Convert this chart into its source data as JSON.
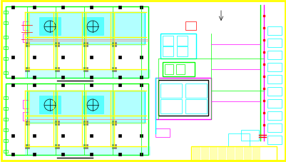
{
  "bg_color": "#FFFFFF",
  "border_color": "#FFFF00",
  "green": "#00FF00",
  "cyan": "#00FFFF",
  "yellow": "#FFFF00",
  "magenta": "#FF00FF",
  "red": "#FF0000",
  "black": "#000000",
  "blue": "#0000FF",
  "gray": "#808080",
  "salmon": "#FF8080",
  "figsize": [
    4.02,
    2.28
  ],
  "dpi": 100
}
